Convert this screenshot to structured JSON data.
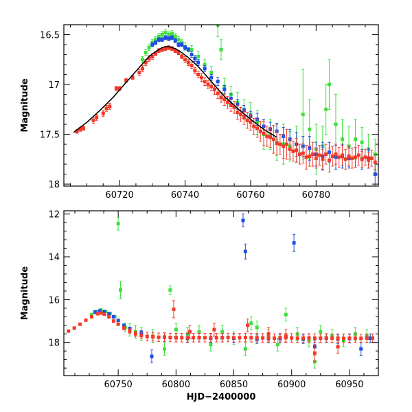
{
  "chart_data": [
    {
      "type": "scatter",
      "panel": "top",
      "ylabel": "Magnitude",
      "xlabel": "",
      "xlim": [
        60703,
        60799
      ],
      "ylim": [
        16.4,
        18.02
      ],
      "y_inverted": true,
      "x_ticks": [
        60720,
        60740,
        60760,
        60780
      ],
      "x_tick_labels": [
        "60720",
        "60740",
        "60760",
        "60780"
      ],
      "y_ticks": [
        16.5,
        17,
        17.5,
        18
      ],
      "y_tick_labels": [
        "16.5",
        "17",
        "17.5",
        "18"
      ],
      "colors": {
        "blue": "#1f4fe0",
        "green": "#3fe03f",
        "red": "#f23a28",
        "model": "#000000"
      },
      "series": [
        {
          "name": "red",
          "color": "#f23a28",
          "x": [
            60707,
            60708,
            60709,
            60712,
            60713,
            60715,
            60716,
            60717,
            60719,
            60720,
            60722,
            60724,
            60726,
            60727,
            60728,
            60729,
            60730,
            60731,
            60732,
            60733,
            60734,
            60735,
            60736,
            60737,
            60738,
            60739,
            60740,
            60741,
            60742,
            60743,
            60744,
            60745,
            60746,
            60747,
            60748,
            60749,
            60750,
            60751,
            60752,
            60753,
            60754,
            60755,
            60756,
            60757,
            60758,
            60759,
            60760,
            60761,
            60762,
            60763,
            60764,
            60765,
            60766,
            60767,
            60768,
            60769,
            60770,
            60771,
            60772,
            60773,
            60774,
            60775,
            60776,
            60777,
            60778,
            60779,
            60780,
            60781,
            60782,
            60783,
            60784,
            60785,
            60786,
            60787,
            60788,
            60789,
            60790,
            60791,
            60792,
            60793,
            60794,
            60795,
            60796,
            60797,
            60798
          ],
          "y": [
            17.47,
            17.45,
            17.44,
            17.36,
            17.33,
            17.29,
            17.24,
            17.22,
            17.04,
            17.04,
            16.96,
            16.93,
            16.88,
            16.84,
            16.78,
            16.74,
            16.72,
            16.69,
            16.66,
            16.65,
            16.64,
            16.63,
            16.64,
            16.66,
            16.68,
            16.72,
            16.75,
            16.78,
            16.81,
            16.86,
            16.9,
            16.93,
            16.97,
            17.0,
            17.02,
            17.05,
            17.09,
            17.13,
            17.15,
            17.18,
            17.21,
            17.23,
            17.28,
            17.3,
            17.33,
            17.36,
            17.38,
            17.42,
            17.44,
            17.47,
            17.49,
            17.52,
            17.53,
            17.55,
            17.59,
            17.6,
            17.62,
            17.6,
            17.65,
            17.67,
            17.66,
            17.7,
            17.69,
            17.73,
            17.72,
            17.7,
            17.74,
            17.71,
            17.75,
            17.7,
            17.76,
            17.72,
            17.7,
            17.73,
            17.71,
            17.75,
            17.72,
            17.74,
            17.73,
            17.71,
            17.75,
            17.73,
            17.76,
            17.74,
            17.78
          ],
          "err": [
            0.02,
            0.02,
            0.02,
            0.03,
            0.03,
            0.03,
            0.03,
            0.03,
            0.02,
            0.02,
            0.02,
            0.02,
            0.03,
            0.03,
            0.03,
            0.03,
            0.03,
            0.02,
            0.02,
            0.02,
            0.02,
            0.02,
            0.02,
            0.02,
            0.02,
            0.02,
            0.03,
            0.03,
            0.03,
            0.03,
            0.03,
            0.04,
            0.04,
            0.04,
            0.04,
            0.05,
            0.05,
            0.05,
            0.06,
            0.06,
            0.06,
            0.06,
            0.07,
            0.07,
            0.07,
            0.08,
            0.08,
            0.08,
            0.09,
            0.1,
            0.12,
            0.1,
            0.1,
            0.14,
            0.12,
            0.1,
            0.12,
            0.15,
            0.1,
            0.1,
            0.12,
            0.1,
            0.1,
            0.12,
            0.1,
            0.12,
            0.1,
            0.1,
            0.1,
            0.1,
            0.12,
            0.1,
            0.1,
            0.1,
            0.1,
            0.1,
            0.1,
            0.1,
            0.1,
            0.1,
            0.08,
            0.08,
            0.08,
            0.08,
            0.08
          ]
        },
        {
          "name": "blue",
          "color": "#1f4fe0",
          "x": [
            60730,
            60731,
            60732,
            60733,
            60734,
            60735,
            60736,
            60737,
            60738,
            60739,
            60740,
            60741,
            60742,
            60743,
            60744,
            60746,
            60748,
            60750,
            60752,
            60754,
            60756,
            60758,
            60760,
            60762,
            60764,
            60766,
            60768,
            60770,
            60772,
            60774,
            60776,
            60778,
            60780,
            60782,
            60784,
            60786,
            60788,
            60790,
            60792,
            60794,
            60796,
            60798
          ],
          "y": [
            16.6,
            16.58,
            16.55,
            16.55,
            16.53,
            16.54,
            16.53,
            16.56,
            16.6,
            16.6,
            16.63,
            16.65,
            16.7,
            16.74,
            16.78,
            16.84,
            16.93,
            16.97,
            17.05,
            17.14,
            17.2,
            17.26,
            17.32,
            17.35,
            17.42,
            17.45,
            17.47,
            17.52,
            17.55,
            17.6,
            17.62,
            17.64,
            17.7,
            17.72,
            17.68,
            17.73,
            17.72,
            17.74,
            17.73,
            17.75,
            17.74,
            17.9
          ],
          "err": [
            0.02,
            0.02,
            0.02,
            0.02,
            0.02,
            0.02,
            0.02,
            0.02,
            0.02,
            0.02,
            0.02,
            0.02,
            0.03,
            0.03,
            0.03,
            0.03,
            0.03,
            0.04,
            0.04,
            0.05,
            0.05,
            0.05,
            0.05,
            0.06,
            0.07,
            0.07,
            0.08,
            0.09,
            0.1,
            0.12,
            0.1,
            0.12,
            0.12,
            0.14,
            0.1,
            0.12,
            0.12,
            0.1,
            0.1,
            0.1,
            0.1,
            0.12
          ]
        },
        {
          "name": "green",
          "color": "#3fe03f",
          "x": [
            60727,
            60728,
            60729,
            60730,
            60731,
            60732,
            60733,
            60734,
            60735,
            60736,
            60737,
            60738,
            60739,
            60740,
            60742,
            60744,
            60746,
            60748,
            60750,
            60751,
            60752,
            60754,
            60756,
            60758,
            60760,
            60762,
            60764,
            60766,
            60768,
            60770,
            60772,
            60774,
            60776,
            60778,
            60780,
            60782,
            60783,
            60784,
            60786,
            60788,
            60790,
            60792,
            60794,
            60796,
            60798
          ],
          "y": [
            16.75,
            16.68,
            16.63,
            16.58,
            16.55,
            16.52,
            16.5,
            16.48,
            16.5,
            16.49,
            16.52,
            16.55,
            16.58,
            16.62,
            16.65,
            16.72,
            16.8,
            16.88,
            16.4,
            16.65,
            17.02,
            17.1,
            17.18,
            17.25,
            17.3,
            17.38,
            17.5,
            17.5,
            17.58,
            17.6,
            17.62,
            17.6,
            17.3,
            17.45,
            17.65,
            17.62,
            17.25,
            17.0,
            17.4,
            17.55,
            17.62,
            17.55,
            17.58,
            17.65,
            17.7
          ],
          "err": [
            0.03,
            0.03,
            0.03,
            0.03,
            0.03,
            0.03,
            0.03,
            0.03,
            0.03,
            0.03,
            0.03,
            0.03,
            0.03,
            0.04,
            0.04,
            0.05,
            0.05,
            0.06,
            0.12,
            0.1,
            0.08,
            0.08,
            0.1,
            0.1,
            0.12,
            0.12,
            0.15,
            0.15,
            0.18,
            0.2,
            0.15,
            0.18,
            0.45,
            0.3,
            0.25,
            0.2,
            0.25,
            0.25,
            0.3,
            0.2,
            0.2,
            0.2,
            0.15,
            0.15,
            0.15
          ]
        },
        {
          "name": "model",
          "color": "#000000",
          "x": [
            60706,
            60710,
            60714,
            60718,
            60722,
            60726,
            60729,
            60731,
            60733,
            60734,
            60735,
            60736,
            60737,
            60739,
            60741,
            60744,
            60748,
            60752,
            60756,
            60760,
            60764,
            60768
          ],
          "y": [
            17.48,
            17.38,
            17.26,
            17.13,
            16.98,
            16.83,
            16.72,
            16.67,
            16.63,
            16.62,
            16.62,
            16.63,
            16.64,
            16.68,
            16.73,
            16.82,
            16.97,
            17.12,
            17.24,
            17.35,
            17.45,
            17.53
          ]
        }
      ]
    },
    {
      "type": "scatter",
      "panel": "bottom",
      "ylabel": "Magnitude",
      "xlabel": "HJD−2400000",
      "xlim": [
        60703,
        60975
      ],
      "ylim": [
        11.85,
        19.55
      ],
      "y_inverted": true,
      "x_ticks": [
        60750,
        60800,
        60850,
        60900,
        60950
      ],
      "x_tick_labels": [
        "60750",
        "60800",
        "60850",
        "60900",
        "60950"
      ],
      "y_ticks": [
        12,
        14,
        16,
        18
      ],
      "y_tick_labels": [
        "12",
        "14",
        "16",
        "18"
      ],
      "series": [
        {
          "name": "red",
          "color": "#f23a28",
          "x": [
            60707,
            60712,
            60717,
            60722,
            60727,
            60732,
            60735,
            60738,
            60742,
            60746,
            60750,
            60755,
            60760,
            60765,
            60770,
            60775,
            60780,
            60785,
            60790,
            60795,
            60800,
            60805,
            60810,
            60815,
            60820,
            60825,
            60830,
            60835,
            60840,
            60845,
            60850,
            60855,
            60860,
            60865,
            60870,
            60875,
            60880,
            60885,
            60890,
            60895,
            60900,
            60905,
            60910,
            60915,
            60920,
            60925,
            60930,
            60935,
            60940,
            60945,
            60950,
            60955,
            60960,
            60965,
            60970,
            60798,
            60812,
            60833,
            60862,
            60880,
            60895,
            60920,
            60940
          ],
          "y": [
            17.47,
            17.33,
            17.15,
            16.96,
            16.8,
            16.66,
            16.63,
            16.68,
            16.8,
            17.0,
            17.15,
            17.33,
            17.47,
            17.6,
            17.68,
            17.72,
            17.74,
            17.76,
            17.76,
            17.77,
            17.78,
            17.78,
            17.78,
            17.78,
            17.77,
            17.78,
            17.78,
            17.78,
            17.78,
            17.77,
            17.78,
            17.78,
            17.77,
            17.78,
            17.78,
            17.79,
            17.78,
            17.8,
            17.78,
            17.78,
            17.79,
            17.8,
            17.8,
            17.79,
            17.8,
            17.8,
            17.79,
            17.8,
            17.8,
            17.81,
            17.8,
            17.8,
            17.81,
            17.8,
            17.8,
            16.45,
            17.5,
            17.4,
            17.2,
            17.6,
            17.7,
            18.5,
            18.2
          ],
          "err": [
            0.05,
            0.05,
            0.05,
            0.05,
            0.05,
            0.05,
            0.05,
            0.05,
            0.05,
            0.05,
            0.06,
            0.08,
            0.1,
            0.12,
            0.15,
            0.2,
            0.2,
            0.2,
            0.2,
            0.2,
            0.2,
            0.2,
            0.2,
            0.2,
            0.2,
            0.2,
            0.2,
            0.2,
            0.2,
            0.2,
            0.2,
            0.2,
            0.2,
            0.2,
            0.2,
            0.2,
            0.2,
            0.2,
            0.2,
            0.2,
            0.2,
            0.2,
            0.2,
            0.2,
            0.2,
            0.2,
            0.2,
            0.2,
            0.2,
            0.2,
            0.2,
            0.2,
            0.2,
            0.2,
            0.2,
            0.4,
            0.3,
            0.3,
            0.3,
            0.3,
            0.3,
            0.4,
            0.3
          ]
        },
        {
          "name": "blue",
          "color": "#1f4fe0",
          "x": [
            60730,
            60734,
            60738,
            60742,
            60746,
            60750,
            60755,
            60760,
            60770,
            60779,
            60790,
            60800,
            60810,
            60820,
            60830,
            60840,
            60850,
            60858,
            60860,
            60870,
            60880,
            60890,
            60902,
            60910,
            60920,
            60930,
            60940,
            60950,
            60960,
            60968
          ],
          "y": [
            16.58,
            16.53,
            16.55,
            16.65,
            16.8,
            16.97,
            17.2,
            17.35,
            17.55,
            18.65,
            17.75,
            17.78,
            17.8,
            17.78,
            17.8,
            17.78,
            17.8,
            12.3,
            13.75,
            17.85,
            17.8,
            17.82,
            13.35,
            17.85,
            18.2,
            17.8,
            17.85,
            17.82,
            18.3,
            17.8
          ],
          "err": [
            0.03,
            0.03,
            0.03,
            0.03,
            0.04,
            0.05,
            0.05,
            0.06,
            0.1,
            0.3,
            0.2,
            0.2,
            0.2,
            0.2,
            0.2,
            0.2,
            0.2,
            0.3,
            0.35,
            0.2,
            0.2,
            0.2,
            0.4,
            0.2,
            0.3,
            0.2,
            0.2,
            0.2,
            0.3,
            0.2
          ]
        },
        {
          "name": "green",
          "color": "#3fe03f",
          "x": [
            60727,
            60731,
            60735,
            60739,
            60743,
            60747,
            60750,
            60752,
            60756,
            60760,
            60765,
            60770,
            60780,
            60790,
            60795,
            60800,
            60810,
            60820,
            60830,
            60840,
            60850,
            60860,
            60865,
            60870,
            60880,
            60888,
            60895,
            60905,
            60915,
            60920,
            60925,
            60935,
            60945,
            60955,
            60965
          ],
          "y": [
            16.7,
            16.55,
            16.48,
            16.55,
            16.65,
            16.8,
            12.45,
            15.55,
            17.3,
            17.4,
            17.5,
            17.6,
            17.7,
            18.3,
            15.55,
            17.4,
            17.6,
            17.5,
            18.1,
            17.5,
            17.8,
            18.3,
            17.1,
            17.3,
            17.7,
            18.1,
            16.7,
            17.6,
            17.9,
            18.9,
            17.5,
            17.7,
            17.9,
            17.6,
            17.7
          ],
          "err": [
            0.04,
            0.04,
            0.04,
            0.04,
            0.05,
            0.06,
            0.3,
            0.4,
            0.2,
            0.3,
            0.3,
            0.3,
            0.3,
            0.3,
            0.2,
            0.3,
            0.3,
            0.3,
            0.3,
            0.3,
            0.3,
            0.3,
            0.3,
            0.3,
            0.3,
            0.3,
            0.3,
            0.3,
            0.3,
            0.3,
            0.3,
            0.3,
            0.3,
            0.3,
            0.3
          ]
        }
      ]
    }
  ]
}
